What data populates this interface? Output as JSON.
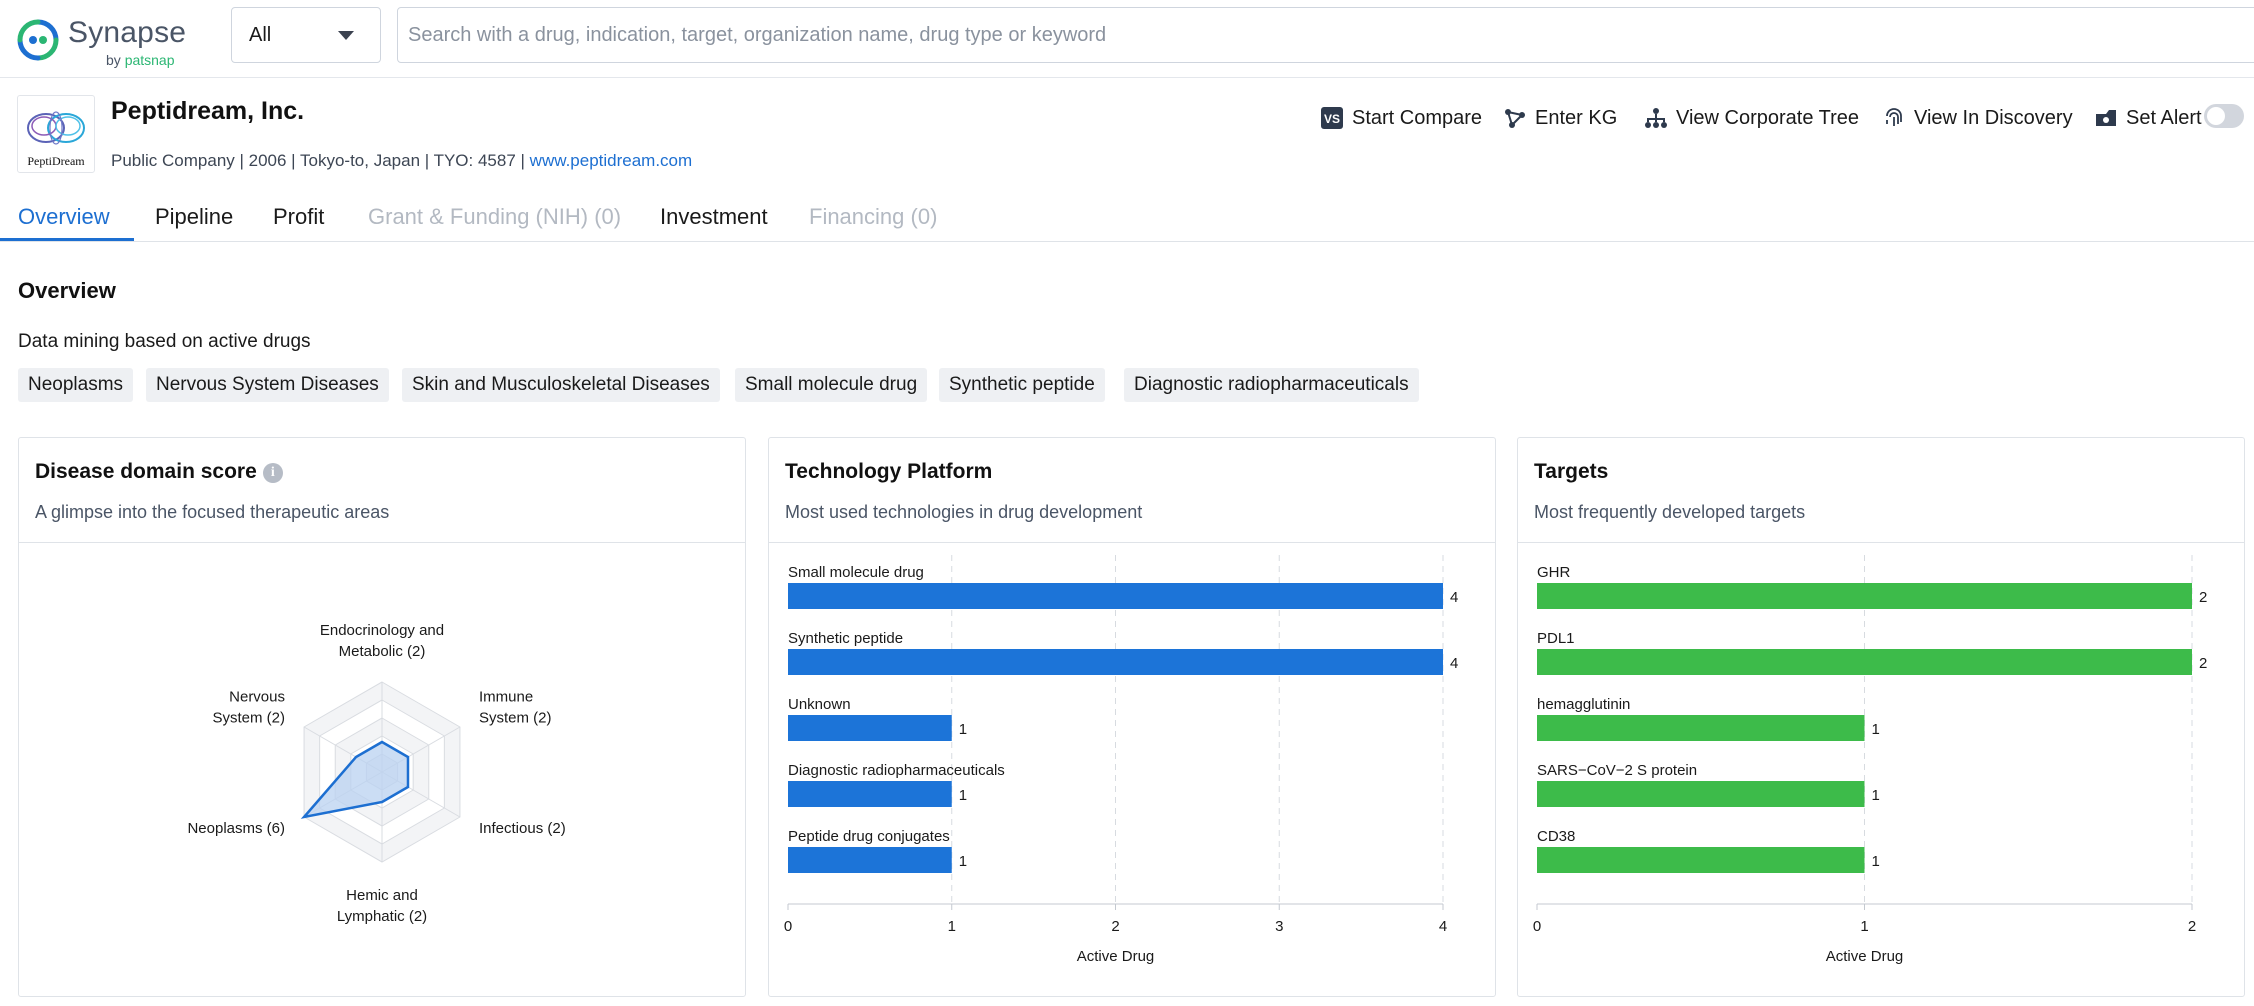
{
  "brand": {
    "name": "Synapse",
    "by": "by",
    "sub": "patsnap"
  },
  "search": {
    "scope_value": "All",
    "placeholder": "Search with a drug, indication, target, organization name, drug type or keyword"
  },
  "company": {
    "name": "Peptidream, Inc.",
    "logo_text": "PeptiDream",
    "meta": "Public Company | 2006 | Tokyo-to, Japan | TYO: 4587 | ",
    "website": "www.peptidream.com"
  },
  "actions": {
    "compare": "Start Compare",
    "kg": "Enter KG",
    "corporate_tree": "View Corporate Tree",
    "discovery": "View In Discovery",
    "alert": "Set Alert"
  },
  "tabs": [
    {
      "label": "Overview",
      "state": "active"
    },
    {
      "label": "Pipeline",
      "state": "normal"
    },
    {
      "label": "Profit",
      "state": "normal"
    },
    {
      "label": "Grant & Funding (NIH) (0)",
      "state": "disabled"
    },
    {
      "label": "Investment",
      "state": "normal"
    },
    {
      "label": "Financing (0)",
      "state": "disabled"
    }
  ],
  "overview": {
    "title": "Overview",
    "subtitle": "Data mining based on active drugs",
    "chips": [
      "Neoplasms",
      "Nervous System Diseases",
      "Skin and Musculoskeletal Diseases",
      "Small molecule drug",
      "Synthetic peptide",
      "Diagnostic radiopharmaceuticals"
    ]
  },
  "cards": {
    "disease": {
      "title": "Disease domain score",
      "subtitle": "A glimpse into the focused therapeutic areas"
    },
    "technology": {
      "title": "Technology Platform",
      "subtitle": "Most used technologies in drug development"
    },
    "targets": {
      "title": "Targets",
      "subtitle": "Most frequently developed targets"
    }
  },
  "colors": {
    "accent": "#1d6fd1",
    "tech_bar": "#1c74d8",
    "target_bar": "#3dbb4a",
    "radar_fill": "#b9d2f0",
    "radar_line": "#1d6fd1"
  },
  "chart_data": [
    {
      "type": "radar",
      "axes": [
        {
          "label_lines": [
            "Endocrinology and",
            "Metabolic (2)"
          ],
          "value": 2
        },
        {
          "label_lines": [
            "Immune",
            "System (2)"
          ],
          "value": 2
        },
        {
          "label_lines": [
            "Infectious (2)"
          ],
          "value": 2
        },
        {
          "label_lines": [
            "Hemic and",
            "Lymphatic (2)"
          ],
          "value": 2
        },
        {
          "label_lines": [
            "Neoplasms (6)"
          ],
          "value": 6
        },
        {
          "label_lines": [
            "Nervous",
            "System (2)"
          ],
          "value": 2
        }
      ],
      "max": 6,
      "rings": 5
    },
    {
      "type": "bar",
      "orientation": "horizontal",
      "categories": [
        "Small molecule drug",
        "Synthetic peptide",
        "Unknown",
        "Diagnostic radiopharmaceuticals",
        "Peptide drug conjugates"
      ],
      "values": [
        4,
        4,
        1,
        1,
        1
      ],
      "xlabel": "Active Drug",
      "xlim": [
        0,
        4
      ],
      "ticks": [
        0,
        1,
        2,
        3,
        4
      ],
      "grid": true
    },
    {
      "type": "bar",
      "orientation": "horizontal",
      "categories": [
        "GHR",
        "PDL1",
        "hemagglutinin",
        "SARS−CoV−2 S protein",
        "CD38"
      ],
      "values": [
        2,
        2,
        1,
        1,
        1
      ],
      "xlabel": "Active Drug",
      "xlim": [
        0,
        2
      ],
      "ticks": [
        0,
        1,
        2
      ],
      "grid": true
    }
  ]
}
